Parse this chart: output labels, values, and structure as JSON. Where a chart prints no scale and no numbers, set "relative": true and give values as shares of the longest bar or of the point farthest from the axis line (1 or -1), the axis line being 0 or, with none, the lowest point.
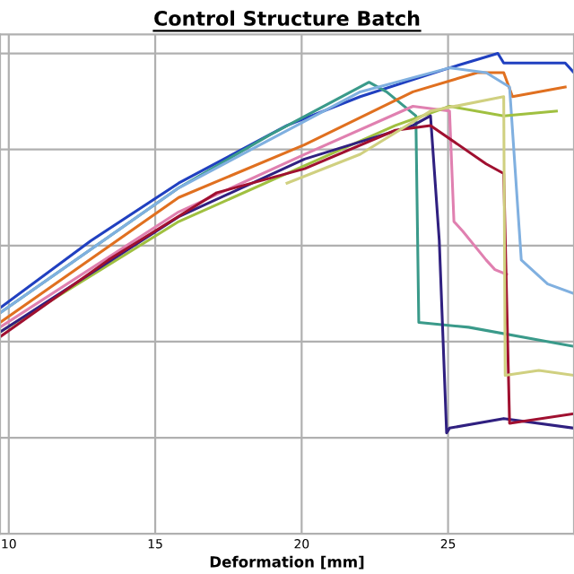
{
  "chart_data": {
    "type": "line",
    "title": "Control Structure Batch",
    "xlabel": "Deformation [mm]",
    "relative": true,
    "xlim": [
      9.7,
      29.3
    ],
    "xticks": [
      10,
      15,
      20,
      25
    ],
    "tick_labels": "x",
    "grid": true,
    "legend": false,
    "marker": "none",
    "line_style": "solid",
    "series": [
      {
        "color": "#2040c0",
        "x": [
          9.7,
          12.8,
          15.8,
          19.5,
          22.0,
          25.05,
          26.7,
          26.9,
          29.0,
          29.3
        ],
        "values": [
          0.47,
          0.61,
          0.73,
          0.85,
          0.91,
          0.97,
          1.0,
          0.98,
          0.98,
          0.96
        ]
      },
      {
        "color": "#3a9a8a",
        "x": [
          9.7,
          15.8,
          18.9,
          22.3,
          22.9,
          23.9,
          24.0,
          25.7,
          29.3
        ],
        "values": [
          0.46,
          0.72,
          0.83,
          0.94,
          0.92,
          0.87,
          0.44,
          0.43,
          0.39
        ]
      },
      {
        "color": "#e07020",
        "x": [
          9.7,
          15.8,
          20.1,
          23.8,
          26.0,
          26.9,
          27.2,
          29.0
        ],
        "values": [
          0.44,
          0.7,
          0.81,
          0.92,
          0.96,
          0.96,
          0.91,
          0.93
        ]
      },
      {
        "color": "#80b0e0",
        "x": [
          9.7,
          15.8,
          22.0,
          25.05,
          26.3,
          27.1,
          27.5,
          28.4,
          29.3
        ],
        "values": [
          0.46,
          0.72,
          0.92,
          0.97,
          0.96,
          0.93,
          0.57,
          0.52,
          0.5
        ]
      },
      {
        "color": "#e080b0",
        "x": [
          9.7,
          15.8,
          20.1,
          23.8,
          25.05,
          25.2,
          25.5,
          26.3,
          26.6,
          27.0
        ],
        "values": [
          0.43,
          0.67,
          0.79,
          0.89,
          0.88,
          0.65,
          0.63,
          0.57,
          0.55,
          0.54
        ]
      },
      {
        "color": "#a0c040",
        "x": [
          9.7,
          15.8,
          19.5,
          23.2,
          25.05,
          26.9,
          28.7
        ],
        "values": [
          0.42,
          0.65,
          0.75,
          0.85,
          0.89,
          0.87,
          0.88
        ]
      },
      {
        "color": "#302080",
        "x": [
          9.7,
          15.8,
          20.1,
          23.8,
          24.4,
          24.7,
          24.95,
          25.05,
          26.9,
          29.3
        ],
        "values": [
          0.42,
          0.66,
          0.78,
          0.85,
          0.87,
          0.61,
          0.21,
          0.22,
          0.24,
          0.22
        ]
      },
      {
        "color": "#a01030",
        "x": [
          9.7,
          13.4,
          17.1,
          20.1,
          23.2,
          24.4,
          26.3,
          26.9,
          27.1,
          29.3
        ],
        "values": [
          0.41,
          0.57,
          0.71,
          0.76,
          0.84,
          0.85,
          0.77,
          0.75,
          0.23,
          0.25
        ]
      },
      {
        "color": "#d0d080",
        "x": [
          19.5,
          22.0,
          24.4,
          26.9,
          26.95,
          28.1,
          29.3
        ],
        "values": [
          0.73,
          0.79,
          0.88,
          0.91,
          0.33,
          0.34,
          0.33
        ]
      }
    ]
  }
}
